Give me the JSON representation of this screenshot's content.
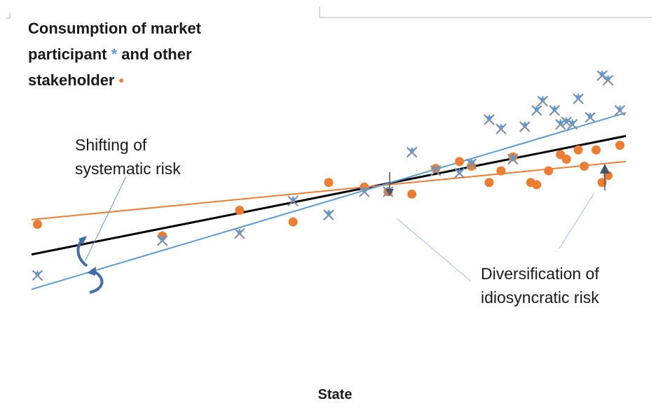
{
  "chart_data": {
    "type": "scatter",
    "title": {
      "line1": "Consumption of market",
      "line2_prefix": "participant",
      "star_marker": "*",
      "line2_suffix": "and other",
      "line3_prefix": "stakeholder",
      "dot_marker": "•"
    },
    "xlabel": "State",
    "ylabel": "",
    "xlim": [
      0,
      100
    ],
    "ylim": [
      0,
      100
    ],
    "grid": false,
    "colors": {
      "market": "#5b9bd5",
      "market_x": "#7f8fa6",
      "stakeholder": "#ed7d31",
      "aggregate": "#000000",
      "arrow": "#44546a"
    },
    "series": [
      {
        "marker": "star-x",
        "points": [
          [
            1,
            14
          ],
          [
            22,
            29
          ],
          [
            35,
            32
          ],
          [
            44,
            46
          ],
          [
            50,
            40
          ],
          [
            56,
            50
          ],
          [
            60,
            50
          ],
          [
            64,
            67
          ],
          [
            68,
            59
          ],
          [
            72,
            58
          ],
          [
            74,
            62
          ],
          [
            77,
            81
          ],
          [
            79,
            77
          ],
          [
            81,
            64
          ],
          [
            83,
            78
          ],
          [
            85,
            85
          ],
          [
            86,
            89
          ],
          [
            88,
            85
          ],
          [
            89,
            79
          ],
          [
            90,
            80
          ],
          [
            91,
            79
          ],
          [
            92,
            90
          ],
          [
            94,
            82
          ],
          [
            96,
            100
          ],
          [
            97,
            98
          ],
          [
            99,
            85
          ]
        ]
      },
      {
        "marker": "dot",
        "points": [
          [
            1,
            36
          ],
          [
            22,
            31
          ],
          [
            35,
            42
          ],
          [
            44,
            37
          ],
          [
            50,
            54
          ],
          [
            56,
            52
          ],
          [
            60,
            50
          ],
          [
            64,
            49
          ],
          [
            68,
            60
          ],
          [
            72,
            63
          ],
          [
            74,
            61
          ],
          [
            77,
            54
          ],
          [
            79,
            59
          ],
          [
            81,
            65
          ],
          [
            84,
            54
          ],
          [
            85,
            53
          ],
          [
            87,
            59
          ],
          [
            89,
            66
          ],
          [
            90,
            64
          ],
          [
            92,
            68
          ],
          [
            93,
            61
          ],
          [
            95,
            68
          ],
          [
            96,
            54
          ],
          [
            97,
            57
          ],
          [
            99,
            70
          ]
        ]
      },
      {
        "marker": "line",
        "role": "aggregate",
        "points": [
          [
            0,
            23
          ],
          [
            100,
            74
          ]
        ]
      },
      {
        "marker": "line",
        "role": "stakeholder-fit",
        "points": [
          [
            0,
            38
          ],
          [
            100,
            63
          ]
        ]
      },
      {
        "marker": "line",
        "role": "market-fit",
        "points": [
          [
            0,
            8
          ],
          [
            100,
            84
          ]
        ]
      }
    ],
    "annotations": [
      {
        "text": [
          "Shifting of",
          "systematic risk"
        ]
      },
      {
        "text": [
          "Diversification of",
          "idiosyncratic risk"
        ]
      }
    ]
  }
}
